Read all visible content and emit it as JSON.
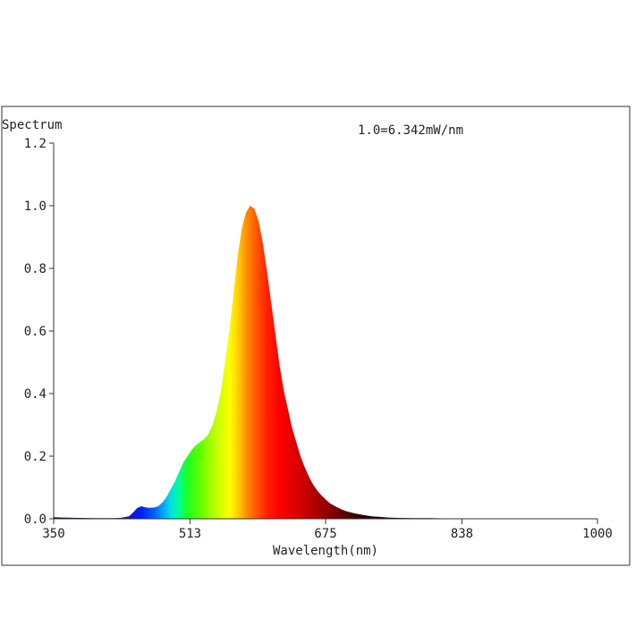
{
  "chart_data": {
    "type": "area",
    "title": "",
    "ylabel": "Spectrum",
    "xlabel": "Wavelength(nm)",
    "annotation": "1.0=6.342mW/nm",
    "xlim": [
      350,
      1000
    ],
    "ylim": [
      0,
      1.2
    ],
    "x_ticks": [
      350,
      513,
      675,
      838,
      1000
    ],
    "x_tick_labels": [
      "350",
      "513",
      "675",
      "838",
      "1000"
    ],
    "y_ticks": [
      0,
      0.2,
      0.4,
      0.6,
      0.8,
      1.0,
      1.2
    ],
    "y_tick_labels": [
      "0.0",
      "0.2",
      "0.4",
      "0.6",
      "0.8",
      "1.0",
      "1.2"
    ],
    "grid": false,
    "fill": "spectral wavelength color gradient",
    "series": [
      {
        "x": [
          350,
          360,
          380,
          400,
          420,
          430,
          440,
          445,
          450,
          455,
          460,
          465,
          470,
          475,
          480,
          485,
          490,
          495,
          500,
          505,
          510,
          515,
          520,
          525,
          530,
          535,
          540,
          545,
          550,
          555,
          560,
          565,
          570,
          575,
          580,
          585,
          590,
          595,
          600,
          605,
          610,
          615,
          620,
          625,
          630,
          635,
          640,
          645,
          650,
          655,
          660,
          665,
          670,
          675,
          680,
          685,
          690,
          695,
          700,
          710,
          720,
          730,
          740,
          750,
          760,
          780,
          800,
          820,
          840,
          860,
          880,
          900,
          950,
          1000
        ],
        "y": [
          0.005,
          0.004,
          0.003,
          0.002,
          0.002,
          0.003,
          0.008,
          0.02,
          0.035,
          0.04,
          0.036,
          0.035,
          0.036,
          0.04,
          0.052,
          0.07,
          0.095,
          0.12,
          0.15,
          0.18,
          0.2,
          0.22,
          0.235,
          0.245,
          0.255,
          0.27,
          0.3,
          0.345,
          0.41,
          0.5,
          0.6,
          0.72,
          0.84,
          0.93,
          0.98,
          1.0,
          0.99,
          0.95,
          0.88,
          0.79,
          0.69,
          0.59,
          0.49,
          0.41,
          0.35,
          0.29,
          0.245,
          0.2,
          0.165,
          0.135,
          0.11,
          0.09,
          0.075,
          0.062,
          0.05,
          0.042,
          0.035,
          0.029,
          0.024,
          0.017,
          0.012,
          0.008,
          0.006,
          0.004,
          0.003,
          0.002,
          0.002,
          0.001,
          0.001,
          0.001,
          0.001,
          0.001,
          0.001,
          0.001
        ]
      }
    ]
  }
}
